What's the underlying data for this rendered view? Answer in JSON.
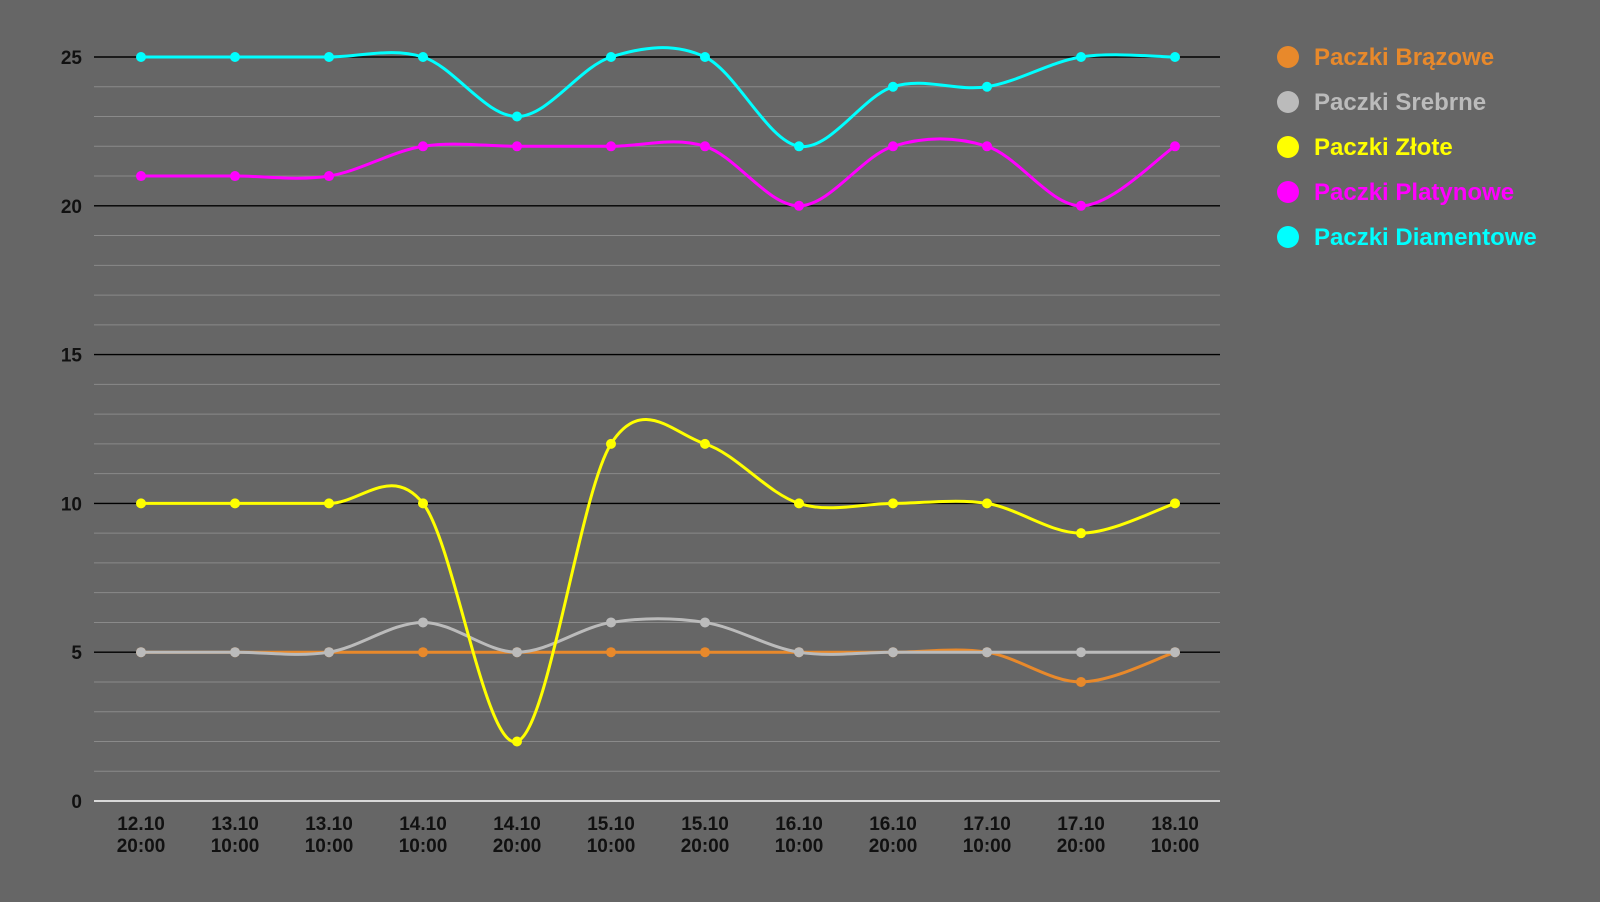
{
  "chart_data": {
    "type": "line",
    "title": "",
    "xlabel": "",
    "ylabel": "",
    "ylim": [
      0,
      25
    ],
    "yticks": [
      "0",
      "5",
      "10",
      "15",
      "20",
      "25"
    ],
    "categories": [
      [
        "12.10",
        "20:00"
      ],
      [
        "13.10",
        "10:00"
      ],
      [
        "13.10",
        "10:00"
      ],
      [
        "14.10",
        "10:00"
      ],
      [
        "14.10",
        "20:00"
      ],
      [
        "15.10",
        "10:00"
      ],
      [
        "15.10",
        "20:00"
      ],
      [
        "16.10",
        "10:00"
      ],
      [
        "16.10",
        "20:00"
      ],
      [
        "17.10",
        "10:00"
      ],
      [
        "17.10",
        "20:00"
      ],
      [
        "18.10",
        "10:00"
      ]
    ],
    "grid": true,
    "smooth": true,
    "legend_position": "right",
    "series": [
      {
        "name": "Paczki Brązowe",
        "color": "#E8892B",
        "values": [
          5,
          5,
          5,
          5,
          5,
          5,
          5,
          5,
          5,
          5,
          4,
          5
        ]
      },
      {
        "name": "Paczki Srebrne",
        "color": "#BBBBBB",
        "values": [
          5,
          5,
          5,
          6,
          5,
          6,
          6,
          5,
          5,
          5,
          5,
          5
        ]
      },
      {
        "name": "Paczki Złote",
        "color": "#FFFF00",
        "values": [
          10,
          10,
          10,
          10,
          2,
          12,
          12,
          10,
          10,
          10,
          9,
          10
        ]
      },
      {
        "name": "Paczki Platynowe",
        "color": "#FF00FF",
        "values": [
          21,
          21,
          21,
          22,
          22,
          22,
          22,
          20,
          22,
          22,
          20,
          22
        ]
      },
      {
        "name": "Paczki Diamentowe",
        "color": "#00FFFF",
        "values": [
          25,
          25,
          25,
          25,
          23,
          25,
          25,
          22,
          24,
          24,
          25,
          25
        ]
      }
    ]
  }
}
